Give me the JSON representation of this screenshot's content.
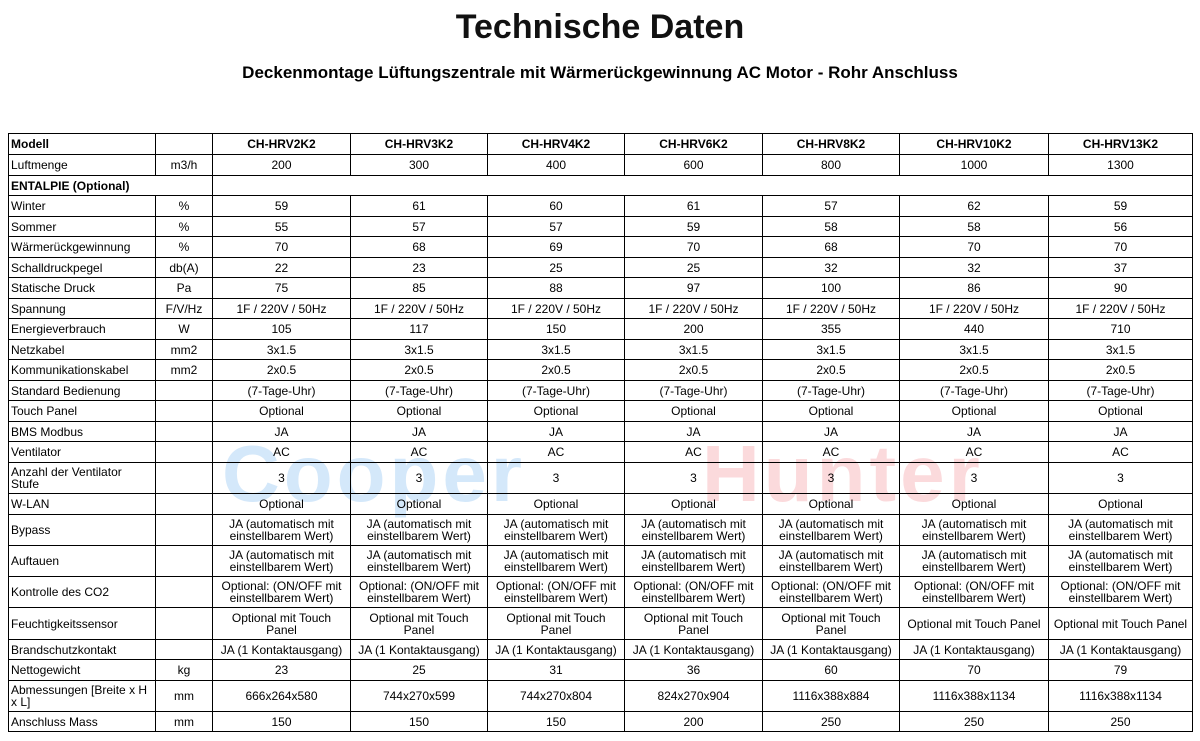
{
  "header": {
    "title": "Technische Daten",
    "subtitle": "Deckenmontage Lüftungszentrale mit Wärmerückgewinnung AC Motor - Rohr Anschluss"
  },
  "watermark": [
    "Cooper",
    "Hunter"
  ],
  "table": {
    "corner": "Modell",
    "models": [
      "CH-HRV2K2",
      "CH-HRV3K2",
      "CH-HRV4K2",
      "CH-HRV6K2",
      "CH-HRV8K2",
      "CH-HRV10K2",
      "CH-HRV13K2"
    ],
    "rows": [
      {
        "label": "Luftmenge",
        "unit": "m3/h",
        "values": [
          "200",
          "300",
          "400",
          "600",
          "800",
          "1000",
          "1300"
        ]
      },
      {
        "label": "ENTALPIE  (Optional)"
      },
      {
        "label": "Winter",
        "unit": "%",
        "values": [
          "59",
          "61",
          "60",
          "61",
          "57",
          "62",
          "59"
        ]
      },
      {
        "label": "Sommer",
        "unit": "%",
        "values": [
          "55",
          "57",
          "57",
          "59",
          "58",
          "58",
          "56"
        ]
      },
      {
        "label": "Wärmerückgewinnung",
        "unit": "%",
        "values": [
          "70",
          "68",
          "69",
          "70",
          "68",
          "70",
          "70"
        ]
      },
      {
        "label": "Schalldruckpegel",
        "unit": "db(A)",
        "values": [
          "22",
          "23",
          "25",
          "25",
          "32",
          "32",
          "37"
        ]
      },
      {
        "label": "Statische Druck",
        "unit": "Pa",
        "values": [
          "75",
          "85",
          "88",
          "97",
          "100",
          "86",
          "90"
        ]
      },
      {
        "label": "Spannung",
        "unit": "F/V/Hz",
        "values": [
          "1F / 220V / 50Hz",
          "1F / 220V / 50Hz",
          "1F / 220V / 50Hz",
          "1F / 220V / 50Hz",
          "1F / 220V / 50Hz",
          "1F / 220V / 50Hz",
          "1F / 220V / 50Hz"
        ]
      },
      {
        "label": "Energieverbrauch",
        "unit": "W",
        "values": [
          "105",
          "117",
          "150",
          "200",
          "355",
          "440",
          "710"
        ]
      },
      {
        "label": "Netzkabel",
        "unit": "mm2",
        "values": [
          "3x1.5",
          "3x1.5",
          "3x1.5",
          "3x1.5",
          "3x1.5",
          "3x1.5",
          "3x1.5"
        ]
      },
      {
        "label": "Kommunikationskabel",
        "unit": "mm2",
        "values": [
          "2x0.5",
          "2x0.5",
          "2x0.5",
          "2x0.5",
          "2x0.5",
          "2x0.5",
          "2x0.5"
        ]
      },
      {
        "label": "Standard Bedienung",
        "values": [
          "(7-Tage-Uhr)",
          "(7-Tage-Uhr)",
          "(7-Tage-Uhr)",
          "(7-Tage-Uhr)",
          "(7-Tage-Uhr)",
          "(7-Tage-Uhr)",
          "(7-Tage-Uhr)"
        ]
      },
      {
        "label": "Touch Panel",
        "values": [
          "Optional",
          "Optional",
          "Optional",
          "Optional",
          "Optional",
          "Optional",
          "Optional"
        ]
      },
      {
        "label": "BMS Modbus",
        "values": [
          "JA",
          "JA",
          "JA",
          "JA",
          "JA",
          "JA",
          "JA"
        ]
      },
      {
        "label": "Ventilator",
        "values": [
          "AC",
          "AC",
          "AC",
          "AC",
          "AC",
          "AC",
          "AC"
        ]
      },
      {
        "label": "Anzahl der Ventilator Stufe",
        "values": [
          "3",
          "3",
          "3",
          "3",
          "3",
          "3",
          "3"
        ]
      },
      {
        "label": "W-LAN",
        "values": [
          "Optional",
          "Optional",
          "Optional",
          "Optional",
          "Optional",
          "Optional",
          "Optional"
        ]
      },
      {
        "label": "Bypass",
        "values": [
          "JA (automatisch mit einstellbarem Wert)",
          "JA (automatisch mit einstellbarem Wert)",
          "JA (automatisch mit einstellbarem Wert)",
          "JA (automatisch mit einstellbarem Wert)",
          "JA (automatisch mit einstellbarem Wert)",
          "JA (automatisch mit einstellbarem Wert)",
          "JA (automatisch mit einstellbarem Wert)"
        ]
      },
      {
        "label": "Auftauen",
        "values": [
          "JA (automatisch mit einstellbarem Wert)",
          "JA (automatisch mit einstellbarem Wert)",
          "JA (automatisch mit einstellbarem Wert)",
          "JA (automatisch mit einstellbarem Wert)",
          "JA (automatisch mit einstellbarem Wert)",
          "JA (automatisch mit einstellbarem Wert)",
          "JA (automatisch mit einstellbarem Wert)"
        ]
      },
      {
        "label": "Kontrolle des CO2",
        "values": [
          "Optional: (ON/OFF mit einstellbarem Wert)",
          "Optional: (ON/OFF mit einstellbarem Wert)",
          "Optional: (ON/OFF mit einstellbarem Wert)",
          "Optional: (ON/OFF mit einstellbarem Wert)",
          "Optional: (ON/OFF mit einstellbarem Wert)",
          "Optional: (ON/OFF mit einstellbarem Wert)",
          "Optional: (ON/OFF mit einstellbarem Wert)"
        ]
      },
      {
        "label": "Feuchtigkeitssensor",
        "values": [
          "Optional mit Touch Panel",
          "Optional mit Touch Panel",
          "Optional mit Touch Panel",
          "Optional mit Touch Panel",
          "Optional mit Touch Panel",
          "Optional mit Touch Panel",
          "Optional mit Touch Panel"
        ]
      },
      {
        "label": "Brandschutzkontakt",
        "values": [
          "JA (1 Kontaktausgang)",
          "JA (1 Kontaktausgang)",
          "JA (1 Kontaktausgang)",
          "JA (1 Kontaktausgang)",
          "JA (1 Kontaktausgang)",
          "JA (1 Kontaktausgang)",
          "JA (1 Kontaktausgang)"
        ]
      },
      {
        "label": "Nettogewicht",
        "unit": "kg",
        "values": [
          "23",
          "25",
          "31",
          "36",
          "60",
          "70",
          "79"
        ]
      },
      {
        "label": "Abmessungen [Breite x H x L]",
        "unit": "mm",
        "values": [
          "666x264x580",
          "744x270x599",
          "744x270x804",
          "824x270x904",
          "1116x388x884",
          "1116x388x1134",
          "1116x388x1134"
        ]
      },
      {
        "label": "Anschluss Mass",
        "unit": "mm",
        "values": [
          "150",
          "150",
          "150",
          "200",
          "250",
          "250",
          "250"
        ]
      }
    ]
  }
}
